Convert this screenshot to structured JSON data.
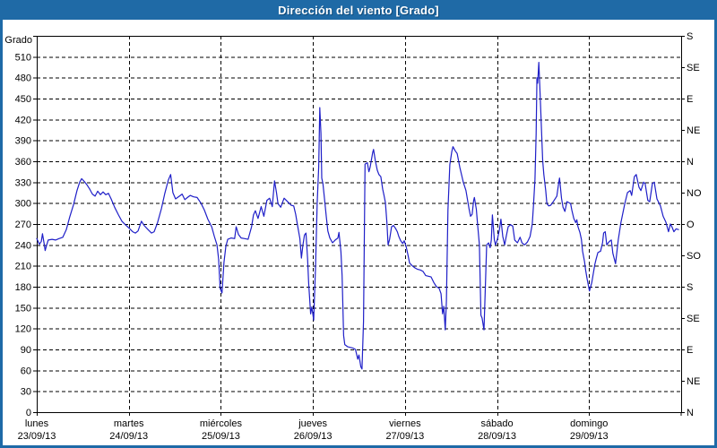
{
  "window": {
    "title": "Dirección del viento [Grado]"
  },
  "chart_data": {
    "type": "line",
    "title": "Dirección del viento [Grado]",
    "ylabel": "Grado",
    "background": "#ffffff",
    "frame_color": "#1e6aa7",
    "grid": {
      "style": "dashed",
      "color": "#000000",
      "h_step_deg": 30,
      "v_step": "1 day"
    },
    "y_axis_left": {
      "label": "Grado",
      "min": 0,
      "max": 540,
      "tick_step": 30
    },
    "y_axis_right": {
      "tick_step_deg": 45,
      "labels_bottom_to_top": [
        "N",
        "NE",
        "E",
        "SE",
        "S",
        "SO",
        "O",
        "NO",
        "N",
        "NE",
        "E",
        "SE",
        "S"
      ]
    },
    "x_axis": {
      "unit": "hours",
      "range": [
        0,
        168
      ],
      "days": [
        {
          "name": "lunes",
          "date": "23/09/13"
        },
        {
          "name": "martes",
          "date": "24/09/13"
        },
        {
          "name": "miércoles",
          "date": "25/09/13"
        },
        {
          "name": "jueves",
          "date": "26/09/13"
        },
        {
          "name": "viernes",
          "date": "27/09/13"
        },
        {
          "name": "sábado",
          "date": "28/09/13"
        },
        {
          "name": "domingo",
          "date": "29/09/13"
        }
      ]
    },
    "series": [
      {
        "name": "Dirección del viento",
        "color": "#1f1fc8",
        "points": [
          [
            0,
            249
          ],
          [
            0.7,
            241
          ],
          [
            1.2,
            245
          ],
          [
            1.5,
            256
          ],
          [
            1.9,
            243
          ],
          [
            2.2,
            232
          ],
          [
            2.6,
            240
          ],
          [
            3,
            247
          ],
          [
            4,
            248
          ],
          [
            4.9,
            247
          ],
          [
            5.8,
            249
          ],
          [
            6.8,
            251
          ],
          [
            7.7,
            262
          ],
          [
            8.6,
            280
          ],
          [
            9.6,
            298
          ],
          [
            10.5,
            318
          ],
          [
            11.2,
            330
          ],
          [
            11.7,
            335
          ],
          [
            12.4,
            331
          ],
          [
            13.1,
            326
          ],
          [
            13.8,
            320
          ],
          [
            14.5,
            313
          ],
          [
            15.2,
            310
          ],
          [
            15.9,
            317
          ],
          [
            16.6,
            312
          ],
          [
            17.3,
            316
          ],
          [
            18,
            312
          ],
          [
            18.7,
            314
          ],
          [
            19.4,
            306
          ],
          [
            20.3,
            294
          ],
          [
            21.3,
            283
          ],
          [
            22.2,
            274
          ],
          [
            23.1,
            269
          ],
          [
            24.1,
            264
          ],
          [
            25,
            259
          ],
          [
            25.7,
            257
          ],
          [
            26.4,
            260
          ],
          [
            27.3,
            274
          ],
          [
            28,
            268
          ],
          [
            29,
            262
          ],
          [
            29.9,
            257
          ],
          [
            30.6,
            259
          ],
          [
            31.5,
            272
          ],
          [
            32.5,
            292
          ],
          [
            33.4,
            314
          ],
          [
            34.3,
            333
          ],
          [
            34.9,
            341
          ],
          [
            35.5,
            315
          ],
          [
            36.2,
            306
          ],
          [
            37.2,
            310
          ],
          [
            37.9,
            313
          ],
          [
            38.6,
            305
          ],
          [
            39.3,
            308
          ],
          [
            40,
            311
          ],
          [
            40.9,
            309
          ],
          [
            41.8,
            308
          ],
          [
            42.8,
            300
          ],
          [
            43.7,
            290
          ],
          [
            44.6,
            277
          ],
          [
            45.6,
            266
          ],
          [
            46.3,
            252
          ],
          [
            47,
            240
          ],
          [
            47.4,
            220
          ],
          [
            47.8,
            178
          ],
          [
            48.3,
            171
          ],
          [
            48.8,
            215
          ],
          [
            49.3,
            238
          ],
          [
            49.8,
            248
          ],
          [
            50.7,
            250
          ],
          [
            51.6,
            249
          ],
          [
            52,
            266
          ],
          [
            52.6,
            255
          ],
          [
            53.3,
            250
          ],
          [
            54.2,
            249
          ],
          [
            55.1,
            248
          ],
          [
            56,
            266
          ],
          [
            56.5,
            283
          ],
          [
            57,
            289
          ],
          [
            57.7,
            278
          ],
          [
            58.5,
            295
          ],
          [
            59.2,
            281
          ],
          [
            60,
            304
          ],
          [
            60.7,
            307
          ],
          [
            61.4,
            295
          ],
          [
            62,
            332
          ],
          [
            62.5,
            315
          ],
          [
            62.9,
            299
          ],
          [
            63.6,
            294
          ],
          [
            64.5,
            307
          ],
          [
            65.4,
            302
          ],
          [
            66.3,
            297
          ],
          [
            67,
            296
          ],
          [
            67.5,
            284
          ],
          [
            68,
            268
          ],
          [
            68.6,
            249
          ],
          [
            69,
            221
          ],
          [
            69.4,
            240
          ],
          [
            69.8,
            254
          ],
          [
            70.2,
            257
          ],
          [
            70.6,
            220
          ],
          [
            70.9,
            185
          ],
          [
            71.4,
            141
          ],
          [
            71.7,
            151
          ],
          [
            72.2,
            132
          ],
          [
            72.7,
            210
          ],
          [
            73.1,
            300
          ],
          [
            73.5,
            352
          ],
          [
            73.8,
            437
          ],
          [
            74.1,
            400
          ],
          [
            74.3,
            336
          ],
          [
            74.6,
            328
          ],
          [
            75,
            307
          ],
          [
            75.5,
            280
          ],
          [
            75.9,
            260
          ],
          [
            76.4,
            250
          ],
          [
            77.1,
            243
          ],
          [
            77.8,
            247
          ],
          [
            78.5,
            250
          ],
          [
            78.8,
            258
          ],
          [
            79.3,
            230
          ],
          [
            79.6,
            196
          ],
          [
            80,
            110
          ],
          [
            80.3,
            97
          ],
          [
            81,
            94
          ],
          [
            81.7,
            93
          ],
          [
            82.4,
            92
          ],
          [
            83.1,
            90
          ],
          [
            83.7,
            76
          ],
          [
            84,
            82
          ],
          [
            84.5,
            65
          ],
          [
            84.8,
            62
          ],
          [
            85.2,
            130
          ],
          [
            85.6,
            356
          ],
          [
            86.2,
            358
          ],
          [
            86.6,
            345
          ],
          [
            86.9,
            351
          ],
          [
            87.6,
            373
          ],
          [
            87.8,
            377
          ],
          [
            88.3,
            360
          ],
          [
            88.8,
            347
          ],
          [
            89.2,
            341
          ],
          [
            89.7,
            338
          ],
          [
            90.2,
            320
          ],
          [
            90.5,
            312
          ],
          [
            90.9,
            301
          ],
          [
            91.3,
            272
          ],
          [
            91.6,
            240
          ],
          [
            92,
            248
          ],
          [
            92.5,
            266
          ],
          [
            93,
            268
          ],
          [
            93.5,
            264
          ],
          [
            94,
            259
          ],
          [
            94.4,
            252
          ],
          [
            94.9,
            246
          ],
          [
            95.4,
            242
          ],
          [
            95.8,
            246
          ],
          [
            96.3,
            238
          ],
          [
            96.8,
            225
          ],
          [
            97.2,
            214
          ],
          [
            97.9,
            210
          ],
          [
            98.6,
            207
          ],
          [
            99.3,
            205
          ],
          [
            100,
            204
          ],
          [
            100.7,
            202
          ],
          [
            101.4,
            196
          ],
          [
            102.1,
            195
          ],
          [
            102.8,
            194
          ],
          [
            103.5,
            186
          ],
          [
            104.2,
            180
          ],
          [
            104.9,
            178
          ],
          [
            105.4,
            170
          ],
          [
            105.8,
            141
          ],
          [
            106.1,
            152
          ],
          [
            106.5,
            118
          ],
          [
            106.8,
            160
          ],
          [
            107.2,
            290
          ],
          [
            107.7,
            355
          ],
          [
            108.2,
            374
          ],
          [
            108.5,
            381
          ],
          [
            109.1,
            375
          ],
          [
            109.6,
            371
          ],
          [
            110.3,
            351
          ],
          [
            111.2,
            330
          ],
          [
            111.9,
            318
          ],
          [
            112.4,
            302
          ],
          [
            112.7,
            292
          ],
          [
            113.1,
            281
          ],
          [
            113.5,
            284
          ],
          [
            113.9,
            304
          ],
          [
            114.1,
            308
          ],
          [
            114.6,
            291
          ],
          [
            114.9,
            272
          ],
          [
            115.4,
            240
          ],
          [
            115.8,
            139
          ],
          [
            116.1,
            135
          ],
          [
            116.6,
            118
          ],
          [
            116.9,
            170
          ],
          [
            117.3,
            240
          ],
          [
            117.8,
            243
          ],
          [
            118.2,
            236
          ],
          [
            118.5,
            247
          ],
          [
            118.8,
            283
          ],
          [
            119.3,
            247
          ],
          [
            119.6,
            240
          ],
          [
            120.1,
            248
          ],
          [
            120.6,
            261
          ],
          [
            121,
            277
          ],
          [
            121.5,
            252
          ],
          [
            122,
            240
          ],
          [
            122.4,
            252
          ],
          [
            122.9,
            266
          ],
          [
            123.5,
            269
          ],
          [
            124.1,
            267
          ],
          [
            124.6,
            247
          ],
          [
            125.3,
            243
          ],
          [
            126,
            251
          ],
          [
            126.5,
            243
          ],
          [
            127.2,
            240
          ],
          [
            127.9,
            244
          ],
          [
            128.6,
            252
          ],
          [
            129.2,
            270
          ],
          [
            129.5,
            296
          ],
          [
            129.9,
            334
          ],
          [
            130.2,
            399
          ],
          [
            130.4,
            480
          ],
          [
            130.6,
            472
          ],
          [
            130.9,
            502
          ],
          [
            131.3,
            448
          ],
          [
            131.7,
            391
          ],
          [
            131.9,
            361
          ],
          [
            132.2,
            341
          ],
          [
            132.7,
            318
          ],
          [
            133,
            299
          ],
          [
            133.5,
            296
          ],
          [
            134,
            297
          ],
          [
            134.4,
            300
          ],
          [
            134.9,
            304
          ],
          [
            135.6,
            310
          ],
          [
            136.1,
            330
          ],
          [
            136.3,
            336
          ],
          [
            136.8,
            307
          ],
          [
            137.2,
            294
          ],
          [
            137.7,
            288
          ],
          [
            138.2,
            302
          ],
          [
            138.6,
            301
          ],
          [
            139.2,
            299
          ],
          [
            139.5,
            290
          ],
          [
            140,
            278
          ],
          [
            140.5,
            272
          ],
          [
            140.8,
            276
          ],
          [
            141.1,
            266
          ],
          [
            141.6,
            258
          ],
          [
            142,
            248
          ],
          [
            142.3,
            231
          ],
          [
            142.8,
            216
          ],
          [
            143.1,
            204
          ],
          [
            143.5,
            191
          ],
          [
            144.1,
            174
          ],
          [
            144.7,
            186
          ],
          [
            145.1,
            199
          ],
          [
            145.5,
            212
          ],
          [
            145.8,
            219
          ],
          [
            146.3,
            229
          ],
          [
            147,
            231
          ],
          [
            147.5,
            243
          ],
          [
            147.8,
            257
          ],
          [
            148.2,
            259
          ],
          [
            148.6,
            240
          ],
          [
            149,
            243
          ],
          [
            149.3,
            245
          ],
          [
            149.8,
            247
          ],
          [
            150.2,
            228
          ],
          [
            150.9,
            213
          ],
          [
            151.6,
            247
          ],
          [
            152.3,
            272
          ],
          [
            153.3,
            299
          ],
          [
            154,
            315
          ],
          [
            154.7,
            318
          ],
          [
            155.1,
            311
          ],
          [
            155.8,
            338
          ],
          [
            156.3,
            341
          ],
          [
            157,
            323
          ],
          [
            157.5,
            318
          ],
          [
            158.2,
            330
          ],
          [
            158.6,
            328
          ],
          [
            159.3,
            304
          ],
          [
            159.8,
            302
          ],
          [
            160.5,
            328
          ],
          [
            161,
            330
          ],
          [
            161.7,
            306
          ],
          [
            162.6,
            296
          ],
          [
            163.3,
            281
          ],
          [
            164,
            273
          ],
          [
            164.7,
            259
          ],
          [
            165.2,
            270
          ],
          [
            165.6,
            266
          ],
          [
            166.1,
            259
          ],
          [
            166.7,
            263
          ],
          [
            167.3,
            262
          ]
        ]
      }
    ]
  }
}
